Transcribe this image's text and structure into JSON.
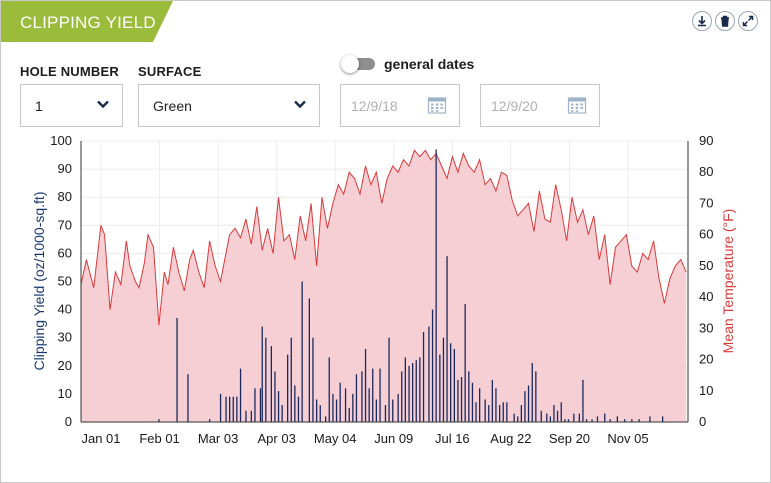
{
  "widget": {
    "title": "CLIPPING YIELD",
    "accent_color": "#9bbc3a",
    "actions": [
      {
        "name": "download-icon",
        "glyph": "⤓"
      },
      {
        "name": "trash-icon",
        "glyph": "🗑"
      },
      {
        "name": "expand-icon",
        "glyph": "⤢"
      }
    ]
  },
  "filters": {
    "hole_label": "HOLE NUMBER",
    "hole_value": "1",
    "surface_label": "SURFACE",
    "surface_value": "Green",
    "general_dates_label": "general dates",
    "general_dates_on": false,
    "start_date_placeholder": "12/9/18",
    "end_date_placeholder": "12/9/20"
  },
  "chart_data": {
    "type": "bar",
    "x_tick_labels": [
      "Jan 01",
      "Feb 01",
      "Mar 03",
      "Apr 03",
      "May 04",
      "Jun 09",
      "Jul 16",
      "Aug 22",
      "Sep 20",
      "Nov 05"
    ],
    "ylabel_left": "Clipping Yield (oz/1000-sq.ft)",
    "ylabel_right": "Mean Temperature (°F)",
    "ylim_left": [
      0,
      100
    ],
    "ylim_right": [
      0,
      90
    ],
    "y_ticks_left": [
      0,
      10,
      20,
      30,
      40,
      50,
      60,
      70,
      80,
      90,
      100
    ],
    "y_ticks_right": [
      0,
      10,
      20,
      30,
      40,
      50,
      60,
      70,
      80,
      90
    ],
    "x_range_days": [
      1,
      336
    ],
    "grid": true,
    "bar_color": "#1a2a5e",
    "line_color": "#d93a3a",
    "area_color": "#f6cfd4",
    "series": [
      {
        "name": "Mean Temperature (°F)",
        "kind": "area",
        "x": [
          1,
          4,
          8,
          12,
          14,
          17,
          20,
          23,
          26,
          28,
          31,
          33,
          36,
          38,
          41,
          44,
          47,
          49,
          52,
          55,
          58,
          61,
          63,
          66,
          69,
          72,
          75,
          78,
          80,
          83,
          86,
          89,
          92,
          95,
          98,
          101,
          104,
          107,
          110,
          113,
          116,
          119,
          122,
          125,
          128,
          131,
          134,
          137,
          140,
          143,
          146,
          149,
          152,
          155,
          158,
          161,
          164,
          167,
          170,
          173,
          176,
          179,
          182,
          185,
          188,
          191,
          194,
          197,
          200,
          203,
          206,
          209,
          212,
          215,
          218,
          221,
          224,
          227,
          230,
          233,
          236,
          239,
          242,
          245,
          248,
          251,
          254,
          257,
          260,
          263,
          266,
          269,
          272,
          275,
          278,
          281,
          284,
          287,
          290,
          293,
          296,
          299,
          302,
          305,
          308,
          311,
          314,
          317,
          320,
          323,
          326,
          329,
          332,
          335
        ],
        "values": [
          44,
          52,
          43,
          63,
          60,
          36,
          48,
          44,
          58,
          50,
          45,
          43,
          51,
          60,
          56,
          31,
          48,
          44,
          56,
          48,
          42,
          52,
          55,
          48,
          43,
          58,
          50,
          45,
          51,
          60,
          62,
          59,
          65,
          57,
          69,
          55,
          62,
          54,
          72,
          58,
          60,
          52,
          66,
          58,
          70,
          50,
          72,
          62,
          70,
          76,
          73,
          80,
          78,
          73,
          82,
          76,
          80,
          70,
          78,
          82,
          80,
          84,
          82,
          87,
          85,
          87,
          84,
          86,
          82,
          78,
          85,
          80,
          86,
          82,
          80,
          84,
          76,
          78,
          74,
          80,
          79,
          71,
          66,
          68,
          70,
          61,
          74,
          65,
          64,
          76,
          68,
          58,
          72,
          64,
          68,
          60,
          66,
          52,
          60,
          44,
          56,
          58,
          60,
          50,
          48,
          54,
          52,
          58,
          46,
          38,
          46,
          50,
          52,
          48
        ]
      },
      {
        "name": "Clipping Yield (oz/1000-sq.ft)",
        "kind": "bar",
        "x": [
          44,
          54,
          60,
          72,
          78,
          81,
          83,
          85,
          87,
          89,
          92,
          95,
          97,
          100,
          101,
          103,
          106,
          108,
          110,
          112,
          115,
          117,
          119,
          121,
          123,
          127,
          129,
          131,
          133,
          136,
          138,
          140,
          142,
          144,
          147,
          149,
          151,
          153,
          156,
          158,
          160,
          162,
          164,
          166,
          169,
          171,
          173,
          176,
          178,
          180,
          182,
          184,
          186,
          188,
          190,
          193,
          195,
          197,
          199,
          201,
          203,
          205,
          207,
          209,
          211,
          213,
          215,
          217,
          219,
          221,
          224,
          226,
          228,
          230,
          232,
          234,
          236,
          240,
          242,
          244,
          246,
          248,
          250,
          252,
          255,
          258,
          260,
          262,
          264,
          266,
          268,
          270,
          273,
          276,
          278,
          280,
          283,
          286,
          290,
          293,
          297,
          301,
          305,
          309,
          315,
          322
        ],
        "values": [
          1,
          37,
          17,
          1,
          10,
          9,
          9,
          9,
          9,
          19,
          4,
          4,
          12,
          12,
          34,
          30,
          27,
          18,
          11,
          6,
          24,
          30,
          13,
          9,
          50,
          44,
          30,
          8,
          6,
          2,
          23,
          10,
          8,
          14,
          12,
          5,
          10,
          17,
          18,
          26,
          12,
          19,
          8,
          19,
          6,
          30,
          8,
          10,
          18,
          23,
          20,
          21,
          22,
          23,
          32,
          34,
          40,
          97,
          24,
          30,
          59,
          28,
          26,
          15,
          16,
          42,
          18,
          14,
          7,
          12,
          8,
          6,
          15,
          12,
          6,
          7,
          7,
          3,
          2,
          6,
          11,
          13,
          21,
          18,
          4,
          3,
          2,
          6,
          4,
          7,
          1,
          1,
          3,
          3,
          15,
          1,
          1,
          2,
          3,
          1,
          2,
          1,
          1,
          1,
          2,
          2
        ]
      }
    ]
  }
}
